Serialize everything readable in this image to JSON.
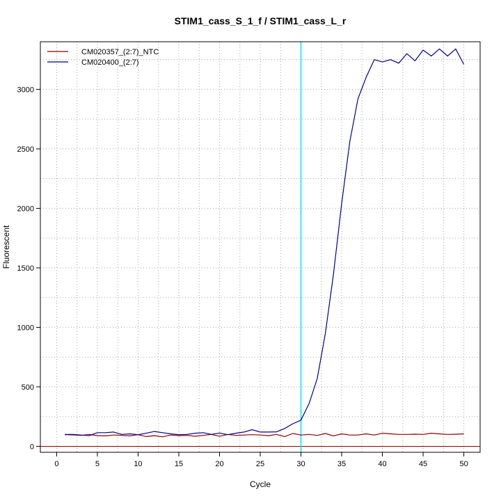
{
  "chart_data": {
    "type": "line",
    "title": "STIM1_cass_S_1_f / STIM1_cass_L_r",
    "xlabel": "Cycle",
    "ylabel": "Fluorescent",
    "xlim": [
      -2,
      52
    ],
    "ylim": [
      -50,
      3400
    ],
    "x_ticks": [
      0,
      5,
      10,
      15,
      20,
      25,
      30,
      35,
      40,
      45,
      50
    ],
    "y_ticks": [
      0,
      500,
      1000,
      1500,
      2000,
      2500,
      3000
    ],
    "x_grid": [
      0,
      2.5,
      5,
      7.5,
      10,
      12.5,
      15,
      17.5,
      20,
      22.5,
      25,
      27.5,
      30,
      32.5,
      35,
      37.5,
      40,
      42.5,
      45,
      47.5,
      50
    ],
    "y_grid": [
      0,
      250,
      500,
      750,
      1000,
      1250,
      1500,
      1750,
      2000,
      2250,
      2500,
      2750,
      3000,
      3250
    ],
    "grid": true,
    "legend_position": "top-left",
    "threshold_x": 30,
    "threshold_color": "#00e5ee",
    "baseline_y": 0,
    "baseline_color": "#8b0000",
    "x": [
      1,
      2,
      3,
      4,
      5,
      6,
      7,
      8,
      9,
      10,
      11,
      12,
      13,
      14,
      15,
      16,
      17,
      18,
      19,
      20,
      21,
      22,
      23,
      24,
      25,
      26,
      27,
      28,
      29,
      30,
      31,
      32,
      33,
      34,
      35,
      36,
      37,
      38,
      39,
      40,
      41,
      42,
      43,
      44,
      45,
      46,
      47,
      48,
      49,
      50
    ],
    "series": [
      {
        "name": "CM020357_(2:7)_NTC",
        "color": "#8b0000",
        "values": [
          98,
          96,
          92,
          100,
          90,
          88,
          95,
          92,
          88,
          98,
          82,
          90,
          80,
          95,
          90,
          92,
          85,
          92,
          100,
          85,
          100,
          92,
          95,
          98,
          95,
          90,
          100,
          82,
          108,
          95,
          100,
          92,
          108,
          88,
          105,
          95,
          95,
          105,
          95,
          110,
          105,
          100,
          100,
          102,
          100,
          110,
          105,
          100,
          102,
          105
        ]
      },
      {
        "name": "CM020400_(2:7)",
        "color": "#00008b",
        "values": [
          100,
          100,
          95,
          90,
          115,
          115,
          120,
          100,
          105,
          98,
          110,
          125,
          115,
          105,
          98,
          100,
          110,
          115,
          100,
          112,
          98,
          110,
          120,
          140,
          120,
          120,
          122,
          150,
          190,
          220,
          360,
          570,
          950,
          1450,
          2040,
          2560,
          2920,
          3100,
          3250,
          3230,
          3250,
          3220,
          3300,
          3240,
          3330,
          3280,
          3340,
          3280,
          3340,
          3210
        ]
      }
    ]
  }
}
